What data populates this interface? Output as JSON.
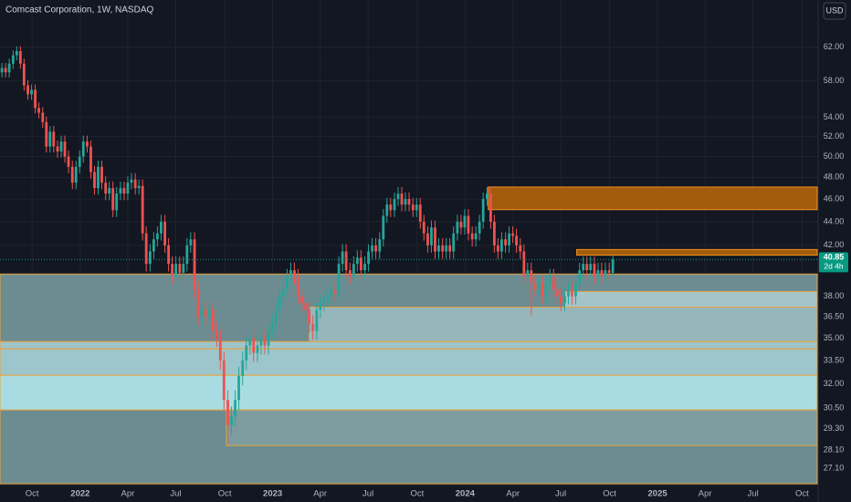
{
  "chart_data": {
    "type": "candlestick",
    "title": "Comcast Corporation, 1W, NASDAQ",
    "currency": "USD",
    "countdown": "2d 4h",
    "log_scale": true,
    "grid": true,
    "up_color": "#26a69a",
    "down_color": "#ef5350",
    "last_price_color": "#089981",
    "xlim": [
      2021.583,
      2025.83
    ],
    "ylim": [
      26.3,
      68
    ],
    "xticks": [
      {
        "value": 2021.75,
        "label": "Oct"
      },
      2022,
      {
        "value": 2022.247,
        "label": "Apr"
      },
      {
        "value": 2022.496,
        "label": "Jul"
      },
      {
        "value": 2022.751,
        "label": "Oct"
      },
      2023,
      {
        "value": 2023.247,
        "label": "Apr"
      },
      {
        "value": 2023.496,
        "label": "Jul"
      },
      {
        "value": 2023.751,
        "label": "Oct"
      },
      2024,
      {
        "value": 2024.249,
        "label": "Apr"
      },
      {
        "value": 2024.497,
        "label": "Jul"
      },
      {
        "value": 2024.751,
        "label": "Oct"
      },
      2025,
      {
        "value": 2025.247,
        "label": "Apr"
      },
      {
        "value": 2025.496,
        "label": "Jul"
      },
      {
        "value": 2025.751,
        "label": "Oct"
      }
    ],
    "yticks": [
      {
        "value": 62,
        "label": "62.00"
      },
      {
        "value": 58,
        "label": "58.00"
      },
      {
        "value": 54,
        "label": "54.00"
      },
      {
        "value": 52,
        "label": "52.00"
      },
      {
        "value": 50,
        "label": "50.00"
      },
      {
        "value": 48,
        "label": "48.00"
      },
      {
        "value": 46,
        "label": "46.00"
      },
      {
        "value": 44,
        "label": "44.00"
      },
      {
        "value": 42,
        "label": "42.00"
      },
      {
        "value": 38,
        "label": "38.00"
      },
      {
        "value": 36.5,
        "label": "36.50"
      },
      {
        "value": 35,
        "label": "35.00"
      },
      {
        "value": 33.5,
        "label": "33.50"
      },
      {
        "value": 32,
        "label": "32.00"
      },
      {
        "value": 30.5,
        "label": "30.50"
      },
      {
        "value": 29.3,
        "label": "29.30"
      },
      {
        "value": 28.1,
        "label": "28.10"
      },
      {
        "value": 27.1,
        "label": "27.10"
      }
    ],
    "zones": [
      {
        "low": 26.3,
        "high": 39.7,
        "x_start": 2021.583,
        "fill": "#6d8c91",
        "border": "#e8a33a"
      },
      {
        "low": 34.77,
        "high": 37.2,
        "x_start": 2023.19,
        "fill": "#95b7bc",
        "border": "#e8a33a"
      },
      {
        "low": 37.2,
        "high": 38.36,
        "x_start": 2024.52,
        "fill": "#a3c5ca",
        "border": "#e8a33a"
      },
      {
        "low": 34.27,
        "high": 34.77,
        "x_start": 2021.583,
        "fill": "#9fc4c9",
        "border": "#e8a33a"
      },
      {
        "low": 32.54,
        "high": 34.27,
        "x_start": 2021.583,
        "fill": "#9cc6cc",
        "border": "#e8a33a"
      },
      {
        "low": 30.4,
        "high": 32.54,
        "x_start": 2021.583,
        "fill": "#a9dce2",
        "border": "#e8a33a"
      },
      {
        "low": 28.35,
        "high": 30.4,
        "x_start": 2022.76,
        "fill": "#7d9ca0",
        "border": "#e8a33a"
      },
      {
        "low": 45.05,
        "high": 47.1,
        "x_start": 2024.12,
        "fill": "#a35c0c",
        "border": "#f09020"
      },
      {
        "low": 41.2,
        "high": 41.66,
        "x_start": 2024.58,
        "fill": "#a35c0c",
        "border": "#f09020"
      }
    ],
    "x": [
      2021.593,
      2021.612,
      2021.631,
      2021.651,
      2021.67,
      2021.689,
      2021.708,
      2021.728,
      2021.747,
      2021.766,
      2021.785,
      2021.805,
      2021.824,
      2021.843,
      2021.862,
      2021.882,
      2021.901,
      2021.92,
      2021.939,
      2021.959,
      2021.978,
      2021.997,
      2022.016,
      2022.036,
      2022.055,
      2022.074,
      2022.093,
      2022.112,
      2022.132,
      2022.151,
      2022.17,
      2022.189,
      2022.209,
      2022.228,
      2022.247,
      2022.266,
      2022.286,
      2022.305,
      2022.324,
      2022.343,
      2022.363,
      2022.382,
      2022.401,
      2022.42,
      2022.44,
      2022.459,
      2022.478,
      2022.497,
      2022.517,
      2022.536,
      2022.555,
      2022.574,
      2022.594,
      2022.613,
      2022.632,
      2022.651,
      2022.671,
      2022.69,
      2022.709,
      2022.728,
      2022.747,
      2022.767,
      2022.786,
      2022.805,
      2022.824,
      2022.844,
      2022.863,
      2022.882,
      2022.901,
      2022.921,
      2022.94,
      2022.959,
      2022.978,
      2022.998,
      2023.017,
      2023.036,
      2023.055,
      2023.075,
      2023.094,
      2023.113,
      2023.132,
      2023.152,
      2023.171,
      2023.19,
      2023.209,
      2023.229,
      2023.248,
      2023.267,
      2023.286,
      2023.305,
      2023.325,
      2023.344,
      2023.363,
      2023.382,
      2023.402,
      2023.421,
      2023.44,
      2023.459,
      2023.479,
      2023.498,
      2023.517,
      2023.536,
      2023.556,
      2023.575,
      2023.594,
      2023.613,
      2023.633,
      2023.652,
      2023.671,
      2023.69,
      2023.709,
      2023.729,
      2023.748,
      2023.767,
      2023.786,
      2023.806,
      2023.825,
      2023.844,
      2023.863,
      2023.883,
      2023.902,
      2023.921,
      2023.94,
      2023.96,
      2023.979,
      2023.998,
      2024.017,
      2024.037,
      2024.056,
      2024.075,
      2024.094,
      2024.114,
      2024.133,
      2024.152,
      2024.171,
      2024.19,
      2024.21,
      2024.229,
      2024.248,
      2024.267,
      2024.287,
      2024.306,
      2024.325,
      2024.344,
      2024.364,
      2024.383,
      2024.402,
      2024.421,
      2024.441,
      2024.46,
      2024.479,
      2024.498,
      2024.518,
      2024.537,
      2024.556,
      2024.575,
      2024.595,
      2024.614,
      2024.633,
      2024.652,
      2024.672,
      2024.691,
      2024.71,
      2024.729,
      2024.749,
      2024.768
    ],
    "open": [
      59.0,
      59.5,
      59.0,
      60.0,
      61.0,
      61.5,
      60.0,
      57.5,
      56.5,
      57.0,
      55.0,
      54.5,
      53.5,
      51.0,
      52.5,
      51.0,
      50.5,
      51.5,
      50.0,
      49.0,
      47.5,
      49.0,
      50.0,
      51.5,
      51.0,
      48.5,
      47.0,
      49.0,
      47.5,
      46.5,
      47.0,
      45.0,
      46.5,
      47.0,
      46.5,
      47.5,
      47.8,
      47.0,
      47.2,
      43.0,
      40.5,
      41.5,
      42.5,
      43.0,
      44.0,
      42.0,
      40.5,
      39.5,
      40.5,
      39.8,
      40.5,
      42.0,
      42.5,
      38.5,
      36.5,
      37.0,
      36.5,
      37.0,
      35.5,
      35.0,
      33.5,
      31.0,
      29.5,
      30.0,
      31.0,
      32.5,
      33.5,
      34.5,
      35.0,
      34.0,
      34.5,
      35.0,
      34.5,
      35.5,
      36.0,
      37.0,
      38.0,
      38.5,
      39.5,
      40.0,
      39.5,
      38.0,
      37.5,
      37.0,
      36.0,
      35.5,
      37.0,
      37.5,
      37.8,
      38.0,
      38.5,
      38.2,
      40.5,
      41.5,
      40.0,
      39.5,
      40.5,
      41.0,
      40.0,
      40.5,
      41.5,
      42.0,
      41.5,
      42.5,
      44.5,
      45.5,
      45.0,
      46.0,
      46.5,
      45.5,
      46.0,
      45.5,
      45.0,
      45.5,
      44.0,
      43.0,
      42.0,
      43.5,
      41.5,
      42.0,
      41.5,
      42.0,
      41.5,
      43.0,
      44.0,
      43.5,
      44.5,
      43.0,
      42.5,
      43.0,
      44.0,
      46.0,
      46.5,
      44.0,
      42.0,
      41.5,
      42.5,
      42.0,
      43.0,
      42.8,
      42.0,
      41.5,
      39.5,
      40.0,
      39.0,
      38.5,
      39.0,
      38.0,
      39.0,
      39.5,
      38.5,
      38.0,
      37.5,
      38.0,
      38.5,
      38.0,
      39.0,
      40.0,
      40.5,
      40.0,
      40.5,
      39.5,
      40.0,
      39.5,
      40.0,
      39.8
    ],
    "high": [
      60.1,
      60.1,
      60.6,
      61.6,
      62.1,
      62.1,
      60.6,
      58.1,
      57.6,
      57.6,
      55.6,
      55.1,
      54.1,
      53.1,
      53.1,
      51.6,
      52.1,
      52.1,
      50.6,
      49.6,
      49.6,
      50.6,
      52.1,
      52.1,
      51.6,
      49.1,
      49.6,
      49.6,
      48.1,
      47.6,
      47.6,
      47.1,
      47.6,
      47.6,
      48.1,
      48.4,
      48.4,
      47.8,
      47.8,
      43.6,
      42.1,
      43.1,
      43.6,
      44.6,
      44.6,
      42.6,
      41.1,
      41.1,
      41.1,
      41.1,
      42.6,
      43.1,
      43.1,
      39.1,
      37.6,
      37.6,
      37.6,
      37.6,
      36.1,
      35.6,
      34.1,
      31.6,
      30.6,
      31.6,
      33.1,
      34.1,
      35.1,
      35.6,
      35.6,
      35.1,
      35.6,
      35.6,
      36.1,
      36.6,
      37.6,
      38.6,
      39.1,
      40.1,
      40.6,
      40.6,
      40.1,
      38.6,
      38.1,
      37.6,
      36.6,
      37.6,
      38.1,
      38.4,
      38.6,
      39.1,
      39.1,
      41.1,
      42.1,
      42.1,
      40.6,
      41.1,
      41.6,
      41.6,
      41.1,
      42.1,
      42.6,
      42.6,
      43.1,
      45.1,
      46.1,
      46.1,
      46.6,
      47.1,
      47.1,
      46.6,
      46.6,
      46.1,
      46.1,
      46.1,
      44.6,
      43.6,
      44.1,
      44.1,
      42.6,
      42.6,
      42.6,
      42.6,
      43.6,
      44.6,
      44.6,
      45.1,
      45.1,
      43.6,
      43.6,
      44.6,
      46.6,
      47.1,
      47.1,
      44.6,
      42.6,
      43.1,
      43.1,
      43.6,
      43.6,
      43.4,
      42.6,
      42.1,
      40.6,
      40.6,
      39.6,
      39.6,
      39.6,
      39.6,
      40.1,
      40.1,
      39.1,
      38.6,
      38.6,
      39.1,
      39.1,
      39.6,
      40.6,
      41.1,
      41.1,
      41.1,
      41.1,
      40.6,
      40.6,
      40.6,
      40.6,
      41.2
    ],
    "low": [
      58.4,
      58.4,
      58.4,
      59.4,
      60.4,
      59.4,
      56.9,
      55.9,
      55.9,
      54.4,
      53.9,
      52.9,
      50.4,
      50.4,
      50.4,
      49.9,
      49.9,
      49.4,
      48.4,
      46.9,
      46.9,
      48.4,
      49.4,
      50.4,
      47.9,
      46.4,
      46.4,
      46.9,
      45.9,
      45.9,
      44.4,
      44.4,
      45.9,
      45.9,
      45.9,
      46.9,
      46.4,
      46.4,
      42.4,
      39.9,
      39.9,
      40.9,
      41.9,
      42.4,
      41.4,
      39.9,
      38.9,
      38.9,
      39.2,
      39.2,
      39.9,
      41.4,
      37.9,
      35.9,
      35.9,
      35.9,
      35.9,
      34.9,
      34.4,
      32.9,
      30.4,
      28.4,
      28.9,
      29.4,
      30.4,
      31.9,
      32.9,
      33.9,
      33.4,
      33.4,
      33.9,
      33.9,
      33.9,
      34.9,
      35.4,
      36.4,
      37.4,
      37.9,
      38.9,
      38.9,
      37.4,
      36.9,
      36.4,
      35.4,
      34.9,
      34.9,
      36.4,
      36.9,
      37.2,
      37.4,
      37.6,
      37.6,
      39.9,
      39.4,
      38.9,
      38.9,
      39.9,
      39.4,
      39.4,
      39.9,
      40.9,
      40.9,
      40.9,
      41.9,
      43.9,
      44.4,
      44.4,
      45.4,
      44.9,
      44.9,
      44.9,
      44.4,
      44.4,
      43.4,
      42.4,
      41.4,
      41.4,
      40.9,
      40.9,
      40.9,
      40.9,
      40.9,
      40.9,
      42.4,
      42.9,
      42.9,
      42.4,
      41.9,
      41.9,
      42.4,
      43.4,
      45.4,
      43.4,
      41.4,
      40.9,
      40.9,
      41.4,
      41.4,
      42.2,
      41.4,
      40.9,
      38.9,
      38.9,
      36.6,
      37.9,
      37.9,
      37.4,
      37.4,
      38.4,
      37.9,
      37.4,
      36.9,
      36.9,
      37.4,
      37.4,
      37.4,
      38.4,
      39.4,
      39.4,
      39.4,
      38.9,
      38.9,
      38.9,
      38.9,
      39.2,
      39.6
    ],
    "close": [
      59.5,
      59.0,
      60.0,
      61.0,
      61.5,
      60.0,
      57.5,
      56.5,
      57.0,
      55.0,
      54.5,
      53.5,
      51.0,
      52.5,
      51.0,
      50.5,
      51.5,
      50.0,
      49.0,
      47.5,
      49.0,
      50.0,
      51.5,
      51.0,
      48.5,
      47.0,
      49.0,
      47.5,
      46.5,
      47.0,
      45.0,
      46.5,
      47.0,
      46.5,
      47.5,
      47.8,
      47.0,
      47.2,
      43.0,
      40.5,
      41.5,
      42.5,
      43.0,
      44.0,
      42.0,
      40.5,
      39.5,
      40.5,
      39.8,
      40.5,
      42.0,
      42.5,
      38.5,
      36.5,
      37.0,
      36.5,
      37.0,
      35.5,
      35.0,
      33.5,
      31.0,
      29.5,
      30.0,
      31.0,
      32.5,
      33.5,
      34.5,
      35.0,
      34.0,
      34.5,
      35.0,
      34.5,
      35.5,
      36.0,
      37.0,
      38.0,
      38.5,
      39.5,
      40.0,
      39.5,
      38.0,
      37.5,
      37.0,
      36.0,
      35.5,
      37.0,
      37.5,
      37.8,
      38.0,
      38.5,
      38.2,
      40.5,
      41.5,
      40.0,
      39.5,
      40.5,
      41.0,
      40.0,
      40.5,
      41.5,
      42.0,
      41.5,
      42.5,
      44.5,
      45.5,
      45.0,
      46.0,
      46.5,
      45.5,
      46.0,
      45.5,
      45.0,
      45.5,
      44.0,
      43.0,
      42.0,
      43.5,
      41.5,
      42.0,
      41.5,
      42.0,
      41.5,
      43.0,
      44.0,
      43.5,
      44.5,
      43.0,
      42.5,
      43.0,
      44.0,
      46.0,
      46.5,
      44.0,
      42.0,
      41.5,
      42.5,
      42.0,
      43.0,
      42.8,
      42.0,
      41.5,
      39.5,
      40.0,
      39.0,
      38.5,
      39.0,
      38.0,
      39.0,
      39.5,
      38.5,
      38.0,
      37.5,
      38.0,
      38.5,
      38.0,
      39.0,
      40.0,
      40.5,
      40.0,
      40.5,
      39.5,
      40.0,
      39.5,
      40.0,
      39.8,
      40.85
    ]
  }
}
